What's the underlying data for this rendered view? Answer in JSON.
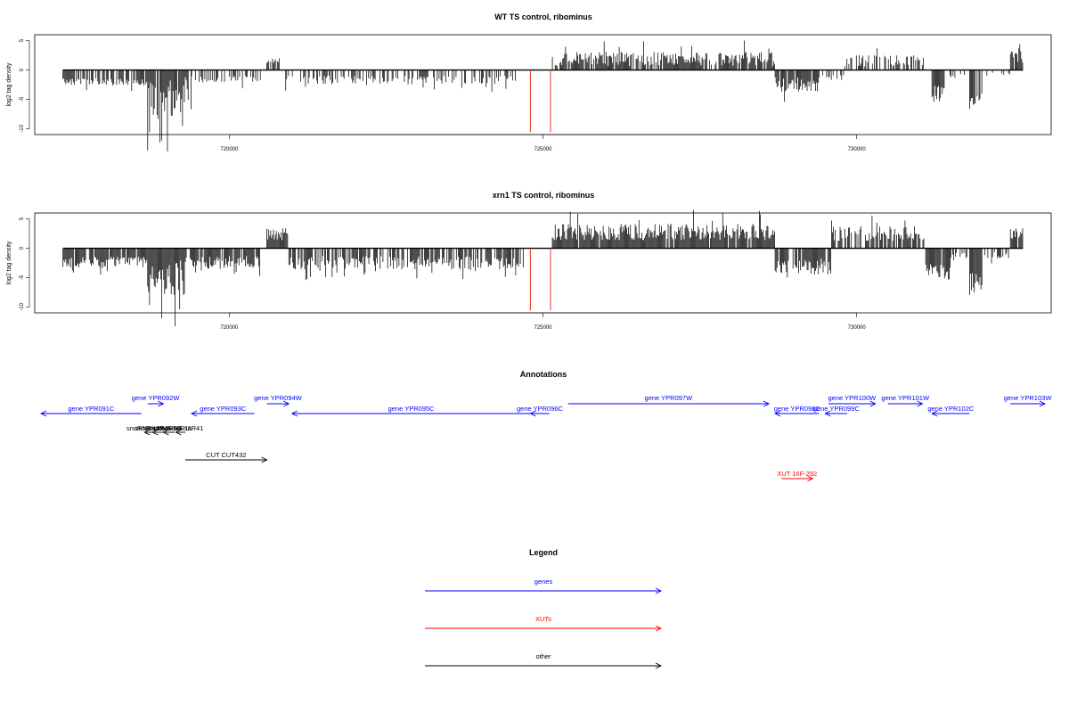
{
  "chart_data": [
    {
      "type": "bar",
      "title": "WT TS control, ribominus",
      "xlabel": "",
      "ylabel": "log2 tag density",
      "xlim": [
        716900,
        733100
      ],
      "ylim": [
        -11,
        6
      ],
      "xticks": [
        720000,
        725000,
        730000
      ],
      "yticks": [
        -10,
        -5,
        0,
        5
      ],
      "marker_lines_x": [
        724800,
        725120
      ],
      "marker_color": "#e8392b",
      "blocks": [
        {
          "from": 717350,
          "to": 718700,
          "sign": -1,
          "mean": 1.8,
          "amp": 1.2,
          "dens": 0.75
        },
        {
          "from": 718700,
          "to": 719000,
          "sign": -1,
          "mean": 4,
          "amp": 6.5,
          "dens": 0.9
        },
        {
          "from": 719000,
          "to": 719400,
          "sign": -1,
          "mean": 3,
          "amp": 7,
          "dens": 0.9
        },
        {
          "from": 719400,
          "to": 720500,
          "sign": -1,
          "mean": 1.3,
          "amp": 1.2,
          "dens": 0.5
        },
        {
          "from": 720600,
          "to": 720800,
          "sign": 1,
          "mean": 1.4,
          "amp": 1,
          "dens": 0.8
        },
        {
          "from": 720900,
          "to": 724600,
          "sign": -1,
          "mean": 1.4,
          "amp": 1.5,
          "dens": 0.45
        },
        {
          "from": 725150,
          "to": 728700,
          "sign": 1,
          "mean": 1.4,
          "amp": 2.4,
          "dens": 0.85
        },
        {
          "from": 728700,
          "to": 729400,
          "sign": -1,
          "mean": 2,
          "amp": 2.5,
          "dens": 0.8
        },
        {
          "from": 729400,
          "to": 729800,
          "sign": -1,
          "mean": 1,
          "amp": 1,
          "dens": 0.4
        },
        {
          "from": 729800,
          "to": 731100,
          "sign": 1,
          "mean": 1.2,
          "amp": 2,
          "dens": 0.55
        },
        {
          "from": 731200,
          "to": 731400,
          "sign": -1,
          "mean": 3.5,
          "amp": 3,
          "dens": 0.9
        },
        {
          "from": 731400,
          "to": 731800,
          "sign": -1,
          "mean": 0.8,
          "amp": 0.8,
          "dens": 0.3
        },
        {
          "from": 731800,
          "to": 732000,
          "sign": -1,
          "mean": 4.5,
          "amp": 3.5,
          "dens": 0.9
        },
        {
          "from": 732000,
          "to": 732450,
          "sign": -1,
          "mean": 0.6,
          "amp": 0.6,
          "dens": 0.2
        },
        {
          "from": 732450,
          "to": 732650,
          "sign": 1,
          "mean": 1.8,
          "amp": 2,
          "dens": 0.9
        }
      ]
    },
    {
      "type": "bar",
      "title": "xrn1 TS control, ribominus",
      "xlabel": "",
      "ylabel": "log2 tag density",
      "xlim": [
        716900,
        733100
      ],
      "ylim": [
        -11,
        6
      ],
      "xticks": [
        720000,
        725000,
        730000
      ],
      "yticks": [
        -10,
        -5,
        0,
        5
      ],
      "marker_lines_x": [
        724800,
        725120
      ],
      "marker_color": "#e8392b",
      "blocks": [
        {
          "from": 717350,
          "to": 718700,
          "sign": -1,
          "mean": 2,
          "amp": 1.8,
          "dens": 0.9
        },
        {
          "from": 718700,
          "to": 719000,
          "sign": -1,
          "mean": 4.5,
          "amp": 5.5,
          "dens": 0.95
        },
        {
          "from": 719000,
          "to": 719300,
          "sign": -1,
          "mean": 3.5,
          "amp": 6.5,
          "dens": 0.95
        },
        {
          "from": 719300,
          "to": 720500,
          "sign": -1,
          "mean": 2,
          "amp": 2.2,
          "dens": 0.85
        },
        {
          "from": 720600,
          "to": 720950,
          "sign": 1,
          "mean": 2,
          "amp": 2,
          "dens": 0.85
        },
        {
          "from": 720950,
          "to": 724700,
          "sign": -1,
          "mean": 2,
          "amp": 2.3,
          "dens": 0.7
        },
        {
          "from": 725150,
          "to": 728700,
          "sign": 1,
          "mean": 2.2,
          "amp": 2.8,
          "dens": 0.95
        },
        {
          "from": 728700,
          "to": 729600,
          "sign": -1,
          "mean": 2.5,
          "amp": 3,
          "dens": 0.85
        },
        {
          "from": 729600,
          "to": 731100,
          "sign": 1,
          "mean": 2,
          "amp": 2.6,
          "dens": 0.8
        },
        {
          "from": 731100,
          "to": 731500,
          "sign": -1,
          "mean": 3.5,
          "amp": 3,
          "dens": 0.9
        },
        {
          "from": 731500,
          "to": 731800,
          "sign": -1,
          "mean": 1,
          "amp": 1,
          "dens": 0.4
        },
        {
          "from": 731800,
          "to": 732000,
          "sign": -1,
          "mean": 5,
          "amp": 3.5,
          "dens": 0.95
        },
        {
          "from": 732000,
          "to": 732450,
          "sign": -1,
          "mean": 1,
          "amp": 1.2,
          "dens": 0.4
        },
        {
          "from": 732450,
          "to": 732650,
          "sign": 1,
          "mean": 2.2,
          "amp": 2,
          "dens": 0.95
        }
      ]
    }
  ],
  "annotations": {
    "title": "Annotations",
    "items": [
      {
        "label": "gene YPR091C",
        "color": "#0000ff",
        "from": 717000,
        "to": 718600,
        "row": 1,
        "dir": -1
      },
      {
        "label": "gene YPR092W",
        "color": "#0000ff",
        "from": 718700,
        "to": 718950,
        "row": 0,
        "dir": 1
      },
      {
        "label": "gene YPR093C",
        "color": "#0000ff",
        "from": 719400,
        "to": 720400,
        "row": 1,
        "dir": -1
      },
      {
        "label": "gene YPR094W",
        "color": "#0000ff",
        "from": 720600,
        "to": 720950,
        "row": 0,
        "dir": 1
      },
      {
        "label": "gene YPR095C",
        "color": "#0000ff",
        "from": 721000,
        "to": 724800,
        "row": 1,
        "dir": -1
      },
      {
        "label": "gene YPR096C",
        "color": "#0000ff",
        "from": 724800,
        "to": 725100,
        "row": 1,
        "dir": -1
      },
      {
        "label": "gene YPR097W",
        "color": "#0000ff",
        "from": 725400,
        "to": 728600,
        "row": 0,
        "dir": 1
      },
      {
        "label": "gene YPR098C",
        "color": "#0000ff",
        "from": 728700,
        "to": 729400,
        "row": 1,
        "dir": -1
      },
      {
        "label": "gene YPR099C",
        "color": "#0000ff",
        "from": 729500,
        "to": 729850,
        "row": 1,
        "dir": -1
      },
      {
        "label": "gene YPR100W",
        "color": "#0000ff",
        "from": 729550,
        "to": 730300,
        "row": 0,
        "dir": 1
      },
      {
        "label": "gene YPR101W",
        "color": "#0000ff",
        "from": 730500,
        "to": 731050,
        "row": 0,
        "dir": 1
      },
      {
        "label": "gene YPR102C",
        "color": "#0000ff",
        "from": 731200,
        "to": 731800,
        "row": 1,
        "dir": -1
      },
      {
        "label": "gene YPR103W",
        "color": "#0000ff",
        "from": 732450,
        "to": 733000,
        "row": 0,
        "dir": 1
      },
      {
        "label": "snoRNA snR45",
        "color": "#000000",
        "from": 718650,
        "to": 718800,
        "row": 2,
        "dir": -1
      },
      {
        "label": "snoRNA snR66",
        "color": "#000000",
        "from": 718780,
        "to": 718950,
        "row": 2,
        "dir": -1
      },
      {
        "label": "snoRNA snR11",
        "color": "#000000",
        "from": 718950,
        "to": 719130,
        "row": 2,
        "dir": -1
      },
      {
        "label": "snoRNA snR41",
        "color": "#000000",
        "from": 719150,
        "to": 719300,
        "row": 2,
        "dir": -1
      },
      {
        "label": "CUT CUT432",
        "color": "#000000",
        "from": 719300,
        "to": 720600,
        "row": 3,
        "dir": 1
      },
      {
        "label": "XUT 16F-292",
        "color": "#ff0000",
        "from": 728800,
        "to": 729300,
        "row": 4,
        "dir": 1
      }
    ]
  },
  "legend": {
    "title": "Legend",
    "entries": [
      {
        "label": "genes",
        "color": "#0000ff"
      },
      {
        "label": "XUTs",
        "color": "#ff0000"
      },
      {
        "label": "other",
        "color": "#000000"
      }
    ]
  }
}
